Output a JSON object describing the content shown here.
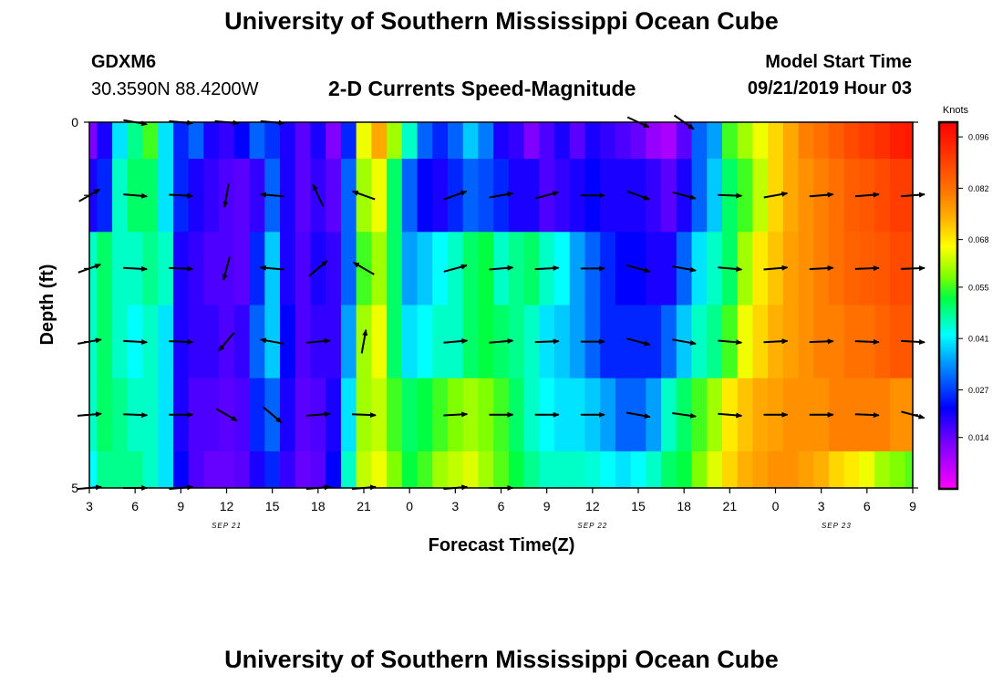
{
  "header": {
    "title": "University of Southern Mississippi Ocean Cube",
    "footer_title": "University of Southern Mississippi Ocean Cube",
    "station_id": "GDXM6",
    "station_coords": "30.3590N 88.4200W",
    "product_title": "2-D Currents Speed-Magnitude",
    "start_label": "Model Start Time",
    "start_value": "09/21/2019 Hour 03"
  },
  "chart_data": {
    "type": "heatmap",
    "title": "2-D Currents Speed-Magnitude",
    "xlabel": "Forecast Time(Z)",
    "ylabel": "Depth (ft)",
    "x_tick_labels": [
      "3",
      "6",
      "9",
      "12",
      "15",
      "18",
      "21",
      "0",
      "3",
      "6",
      "9",
      "12",
      "15",
      "18",
      "21",
      "0",
      "3",
      "6",
      "9"
    ],
    "date_labels": [
      {
        "label": "SEP 21",
        "hour_index": 9
      },
      {
        "label": "SEP 22",
        "hour_index": 33
      },
      {
        "label": "SEP 23",
        "hour_index": 49
      }
    ],
    "x_range_hours": [
      0,
      54
    ],
    "y_range_ft": [
      0,
      5
    ],
    "y_tick_labels": [
      "0",
      "5"
    ],
    "depth_rows_ft": [
      0,
      1,
      2,
      3,
      4,
      5
    ],
    "colorbar": {
      "label": "Knots",
      "range": [
        0,
        0.1
      ],
      "ticks": [
        "0.096",
        "0.082",
        "0.068",
        "0.055",
        "0.041",
        "0.027",
        "0.014"
      ],
      "tick_values": [
        0.096,
        0.082,
        0.068,
        0.055,
        0.041,
        0.027,
        0.014
      ]
    },
    "col_hours": [
      0,
      1,
      2,
      3,
      4,
      5,
      6,
      7,
      8,
      9,
      10,
      11,
      12,
      13,
      14,
      15,
      16,
      17,
      18,
      19,
      20,
      21,
      22,
      23,
      24,
      25,
      26,
      27,
      28,
      29,
      30,
      31,
      32,
      33,
      34,
      35,
      36,
      37,
      38,
      39,
      40,
      41,
      42,
      43,
      44,
      45,
      46,
      47,
      48,
      49,
      50,
      51,
      52,
      53,
      54
    ],
    "speed_knots": [
      [
        0.012,
        0.02,
        0.04,
        0.048,
        0.055,
        0.04,
        0.025,
        0.03,
        0.02,
        0.018,
        0.022,
        0.03,
        0.026,
        0.02,
        0.015,
        0.02,
        0.012,
        0.025,
        0.065,
        0.075,
        0.06,
        0.045,
        0.03,
        0.025,
        0.03,
        0.038,
        0.032,
        0.02,
        0.018,
        0.012,
        0.016,
        0.02,
        0.015,
        0.02,
        0.018,
        0.016,
        0.014,
        0.01,
        0.008,
        0.015,
        0.03,
        0.035,
        0.055,
        0.06,
        0.065,
        0.07,
        0.075,
        0.08,
        0.082,
        0.085,
        0.088,
        0.09,
        0.092,
        0.095,
        0.096
      ],
      [
        0.02,
        0.025,
        0.045,
        0.05,
        0.05,
        0.04,
        0.025,
        0.02,
        0.018,
        0.016,
        0.015,
        0.018,
        0.03,
        0.02,
        0.015,
        0.018,
        0.015,
        0.03,
        0.06,
        0.065,
        0.05,
        0.03,
        0.022,
        0.02,
        0.025,
        0.03,
        0.028,
        0.025,
        0.02,
        0.02,
        0.016,
        0.018,
        0.02,
        0.022,
        0.02,
        0.02,
        0.02,
        0.018,
        0.015,
        0.02,
        0.03,
        0.038,
        0.05,
        0.055,
        0.062,
        0.07,
        0.075,
        0.078,
        0.08,
        0.082,
        0.085,
        0.086,
        0.088,
        0.09,
        0.09
      ],
      [
        0.045,
        0.05,
        0.045,
        0.045,
        0.048,
        0.045,
        0.02,
        0.018,
        0.016,
        0.016,
        0.015,
        0.025,
        0.038,
        0.02,
        0.016,
        0.02,
        0.018,
        0.03,
        0.055,
        0.06,
        0.05,
        0.035,
        0.038,
        0.042,
        0.045,
        0.05,
        0.052,
        0.045,
        0.048,
        0.05,
        0.045,
        0.042,
        0.035,
        0.03,
        0.025,
        0.022,
        0.022,
        0.02,
        0.02,
        0.03,
        0.04,
        0.045,
        0.05,
        0.06,
        0.068,
        0.072,
        0.076,
        0.078,
        0.08,
        0.082,
        0.084,
        0.085,
        0.086,
        0.088,
        0.088
      ],
      [
        0.045,
        0.05,
        0.045,
        0.042,
        0.045,
        0.04,
        0.02,
        0.018,
        0.018,
        0.016,
        0.018,
        0.03,
        0.038,
        0.022,
        0.016,
        0.018,
        0.018,
        0.035,
        0.06,
        0.065,
        0.05,
        0.04,
        0.042,
        0.045,
        0.045,
        0.05,
        0.052,
        0.05,
        0.048,
        0.045,
        0.04,
        0.038,
        0.035,
        0.03,
        0.025,
        0.025,
        0.025,
        0.025,
        0.03,
        0.038,
        0.045,
        0.048,
        0.055,
        0.065,
        0.07,
        0.074,
        0.076,
        0.078,
        0.08,
        0.08,
        0.082,
        0.082,
        0.084,
        0.086,
        0.086
      ],
      [
        0.045,
        0.05,
        0.048,
        0.045,
        0.045,
        0.04,
        0.02,
        0.016,
        0.016,
        0.015,
        0.016,
        0.025,
        0.03,
        0.02,
        0.015,
        0.016,
        0.02,
        0.04,
        0.06,
        0.062,
        0.055,
        0.05,
        0.052,
        0.055,
        0.058,
        0.06,
        0.058,
        0.055,
        0.05,
        0.045,
        0.042,
        0.04,
        0.04,
        0.038,
        0.035,
        0.03,
        0.03,
        0.035,
        0.045,
        0.05,
        0.055,
        0.06,
        0.068,
        0.072,
        0.075,
        0.076,
        0.078,
        0.078,
        0.078,
        0.08,
        0.08,
        0.08,
        0.08,
        0.078,
        0.078
      ],
      [
        0.042,
        0.048,
        0.048,
        0.048,
        0.045,
        0.04,
        0.022,
        0.016,
        0.014,
        0.014,
        0.015,
        0.02,
        0.025,
        0.018,
        0.014,
        0.015,
        0.022,
        0.045,
        0.062,
        0.065,
        0.058,
        0.052,
        0.055,
        0.06,
        0.062,
        0.064,
        0.06,
        0.056,
        0.052,
        0.048,
        0.045,
        0.045,
        0.045,
        0.044,
        0.042,
        0.04,
        0.042,
        0.045,
        0.05,
        0.052,
        0.058,
        0.064,
        0.07,
        0.074,
        0.076,
        0.078,
        0.078,
        0.076,
        0.074,
        0.07,
        0.068,
        0.065,
        0.06,
        0.058,
        0.056
      ]
    ],
    "vector_x_hours": [
      0,
      3,
      6,
      9,
      12,
      15,
      18,
      21,
      24,
      27,
      30,
      33,
      36,
      39,
      42,
      45,
      48,
      51,
      54
    ],
    "vector_angles_deg": [
      [
        null,
        -10,
        -5,
        -5,
        -5,
        null,
        null,
        null,
        null,
        null,
        null,
        null,
        -25,
        -35,
        null,
        null,
        null,
        null,
        null
      ],
      [
        30,
        -5,
        -3,
        -100,
        175,
        115,
        160,
        null,
        20,
        10,
        15,
        0,
        -20,
        -15,
        -2,
        10,
        5,
        5,
        5
      ],
      [
        20,
        -3,
        -2,
        -105,
        175,
        40,
        150,
        null,
        15,
        5,
        3,
        0,
        -15,
        -10,
        -5,
        5,
        3,
        2,
        2
      ],
      [
        10,
        -3,
        -2,
        -130,
        170,
        5,
        80,
        null,
        5,
        5,
        2,
        0,
        -15,
        -10,
        -5,
        3,
        2,
        -2,
        -3
      ],
      [
        5,
        -2,
        0,
        -30,
        -40,
        5,
        -2,
        null,
        3,
        0,
        0,
        0,
        -10,
        -8,
        -5,
        0,
        0,
        -2,
        -15
      ],
      [
        5,
        0,
        5,
        null,
        null,
        5,
        5,
        null,
        5,
        0,
        null,
        null,
        null,
        null,
        null,
        null,
        null,
        null,
        null
      ]
    ]
  }
}
